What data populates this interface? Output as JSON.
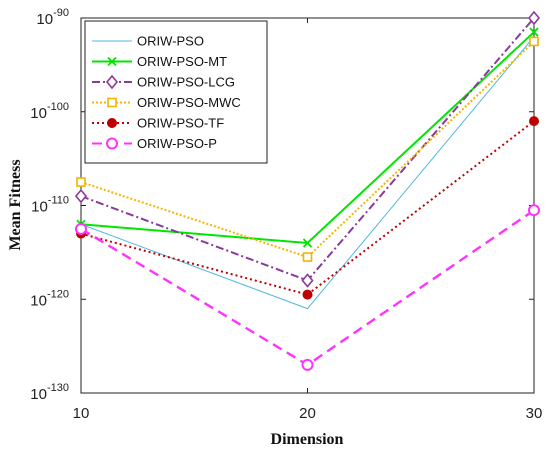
{
  "chart_data": {
    "type": "line",
    "xlabel": "Dimension",
    "ylabel": "Mean Fitness",
    "x": [
      10,
      20,
      30
    ],
    "xticks": [
      "10",
      "20",
      "30"
    ],
    "xlim": [
      10,
      30
    ],
    "yscale": "log",
    "ylim_exponent": [
      -130,
      -90
    ],
    "yticks": [
      {
        "base": "10",
        "exp": "-90"
      },
      {
        "base": "10",
        "exp": "-100"
      },
      {
        "base": "10",
        "exp": "-110"
      },
      {
        "base": "10",
        "exp": "-120"
      },
      {
        "base": "10",
        "exp": "-130"
      }
    ],
    "legend_position": "top-left",
    "series": [
      {
        "name": "ORIW-PSO",
        "log10_values": [
          -112,
          -121,
          -92
        ],
        "color": "#4fb8e0",
        "dash": "",
        "marker": "none"
      },
      {
        "name": "ORIW-PSO-MT",
        "log10_values": [
          -112,
          -114,
          -91.5
        ],
        "color": "#00e600",
        "dash": "",
        "marker": "x"
      },
      {
        "name": "ORIW-PSO-LCG",
        "log10_values": [
          -109,
          -118,
          -90
        ],
        "color": "#8a3a9a",
        "dash": "8,3,2,3",
        "marker": "diamond"
      },
      {
        "name": "ORIW-PSO-MWC",
        "log10_values": [
          -107.5,
          -115.5,
          -92.5
        ],
        "color": "#f5b400",
        "dash": "2,2",
        "marker": "square"
      },
      {
        "name": "ORIW-PSO-TF",
        "log10_values": [
          -113,
          -119.5,
          -101
        ],
        "color": "#c00000",
        "dash": "2,3",
        "marker": "dot"
      },
      {
        "name": "ORIW-PSO-P",
        "log10_values": [
          -112.5,
          -127,
          -110.5
        ],
        "color": "#ff33ff",
        "dash": "10,6",
        "marker": "circle"
      }
    ]
  }
}
